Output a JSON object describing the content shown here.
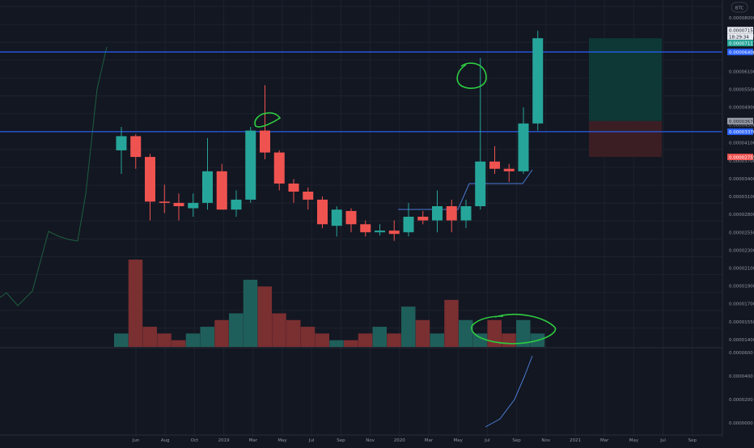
{
  "header": {
    "unit_badge": "BTC"
  },
  "colors": {
    "background": "#131722",
    "up": "#26a69a",
    "down": "#ef5350",
    "vol_up": "#1f5f5b",
    "vol_down": "#7a2f31",
    "horizontal_line": "#2962ff",
    "annotation": "#2ecc40",
    "indicator_line": "#4a7bd1",
    "long_profit": "#0d3a37",
    "long_loss": "#3d1f24",
    "grid": "#1e222d"
  },
  "chart_data": {
    "type": "candlestick",
    "interval": "monthly",
    "quote_unit": "BTC",
    "ylim": [
      6e-06,
      8e-05
    ],
    "y_ticks": [
      "0.00008000",
      "0.00007300",
      "0.00006700",
      "0.00006100",
      "0.00005500",
      "0.00004900",
      "0.00004500",
      "0.00004100",
      "0.00003700",
      "0.00003400",
      "0.00003100",
      "0.00002800",
      "0.00002550",
      "0.00002300",
      "0.00002100",
      "0.00001900",
      "0.00001700",
      "0.00001550",
      "0.00001400"
    ],
    "x_tick_labels": [
      "Jun",
      "Aug",
      "Oct",
      "2019",
      "Mar",
      "May",
      "Jul",
      "Sep",
      "Nov",
      "2020",
      "Mar",
      "May",
      "Jul",
      "Sep",
      "Nov",
      "2021",
      "Mar",
      "May",
      "Jul",
      "Sep"
    ],
    "candles": [
      {
        "o": 2.9e-05,
        "h": 3.5e-05,
        "l": 2.4e-05,
        "c": 3.25e-05
      },
      {
        "o": 3.25e-05,
        "h": 3.3e-05,
        "l": 2.5e-05,
        "c": 2.75e-05
      },
      {
        "o": 2.75e-05,
        "h": 2.82e-05,
        "l": 1.65e-05,
        "c": 1.92e-05
      },
      {
        "o": 1.92e-05,
        "h": 2.2e-05,
        "l": 1.75e-05,
        "c": 1.9e-05
      },
      {
        "o": 1.9e-05,
        "h": 2.05e-05,
        "l": 1.65e-05,
        "c": 1.85e-05
      },
      {
        "o": 1.82e-05,
        "h": 2.05e-05,
        "l": 1.7e-05,
        "c": 1.9e-05
      },
      {
        "o": 1.9e-05,
        "h": 3.2e-05,
        "l": 1.8e-05,
        "c": 2.45e-05
      },
      {
        "o": 2.45e-05,
        "h": 2.6e-05,
        "l": 1.8e-05,
        "c": 1.8e-05
      },
      {
        "o": 1.8e-05,
        "h": 2.1e-05,
        "l": 1.7e-05,
        "c": 1.95e-05
      },
      {
        "o": 1.95e-05,
        "h": 3.5e-05,
        "l": 1.9e-05,
        "c": 3.4e-05
      },
      {
        "o": 3.4e-05,
        "h": 4.9e-05,
        "l": 2.7e-05,
        "c": 2.85e-05
      },
      {
        "o": 2.85e-05,
        "h": 2.9e-05,
        "l": 2.1e-05,
        "c": 2.22e-05
      },
      {
        "o": 2.22e-05,
        "h": 2.3e-05,
        "l": 1.9e-05,
        "c": 2.08e-05
      },
      {
        "o": 2.08e-05,
        "h": 2.15e-05,
        "l": 1.8e-05,
        "c": 1.95e-05
      },
      {
        "o": 1.95e-05,
        "h": 2e-05,
        "l": 1.55e-05,
        "c": 1.6e-05
      },
      {
        "o": 1.58e-05,
        "h": 1.85e-05,
        "l": 1.45e-05,
        "c": 1.8e-05
      },
      {
        "o": 1.78e-05,
        "h": 1.82e-05,
        "l": 1.5e-05,
        "c": 1.6e-05
      },
      {
        "o": 1.6e-05,
        "h": 1.65e-05,
        "l": 1.45e-05,
        "c": 1.5e-05
      },
      {
        "o": 1.5e-05,
        "h": 1.6e-05,
        "l": 1.46e-05,
        "c": 1.52e-05
      },
      {
        "o": 1.52e-05,
        "h": 1.65e-05,
        "l": 1.4e-05,
        "c": 1.48e-05
      },
      {
        "o": 1.5e-05,
        "h": 1.9e-05,
        "l": 1.45e-05,
        "c": 1.7e-05
      },
      {
        "o": 1.7e-05,
        "h": 1.78e-05,
        "l": 1.6e-05,
        "c": 1.65e-05
      },
      {
        "o": 1.65e-05,
        "h": 2.1e-05,
        "l": 1.5e-05,
        "c": 1.85e-05
      },
      {
        "o": 1.85e-05,
        "h": 1.95e-05,
        "l": 1.5e-05,
        "c": 1.65e-05
      },
      {
        "o": 1.65e-05,
        "h": 1.95e-05,
        "l": 1.55e-05,
        "c": 1.85e-05
      },
      {
        "o": 1.85e-05,
        "h": 6.1e-05,
        "l": 1.8e-05,
        "c": 2.65e-05
      },
      {
        "o": 2.65e-05,
        "h": 3e-05,
        "l": 2.4e-05,
        "c": 2.5e-05
      },
      {
        "o": 2.5e-05,
        "h": 2.6e-05,
        "l": 2.25e-05,
        "c": 2.45e-05
      },
      {
        "o": 2.45e-05,
        "h": 4.1e-05,
        "l": 2.4e-05,
        "c": 3.6e-05
      },
      {
        "o": 3.6e-05,
        "h": 7.6e-05,
        "l": 3.4e-05,
        "c": 7.15e-05
      }
    ],
    "volume_indexed": [
      2,
      13,
      3,
      2,
      1,
      2,
      3,
      4,
      5,
      10,
      9,
      5,
      4,
      3,
      2,
      1,
      1,
      2,
      3,
      2,
      6,
      4,
      2,
      7,
      4,
      2,
      4,
      2,
      4,
      2
    ],
    "horizontal_lines": [
      {
        "price": 6.4e-05,
        "label": "0.00006400"
      },
      {
        "price": 3.37e-05,
        "label": "0.00003370"
      }
    ],
    "price_labels": [
      {
        "text": "0.00007154",
        "role": "last-price"
      },
      {
        "text": "18:29:34",
        "role": "countdown"
      },
      {
        "text": "0.00007117",
        "role": "close"
      },
      {
        "text": "0.00003670",
        "role": "position-entry"
      },
      {
        "text": "0.00002755",
        "role": "stop-loss"
      }
    ],
    "lower_axis_ticks": [
      "0.0000600",
      "0.0000400",
      "0.0000200",
      "0.0000000"
    ],
    "long_position": {
      "entry": 3.67e-05,
      "target": 7.15e-05,
      "stop": 2.75e-05
    }
  }
}
